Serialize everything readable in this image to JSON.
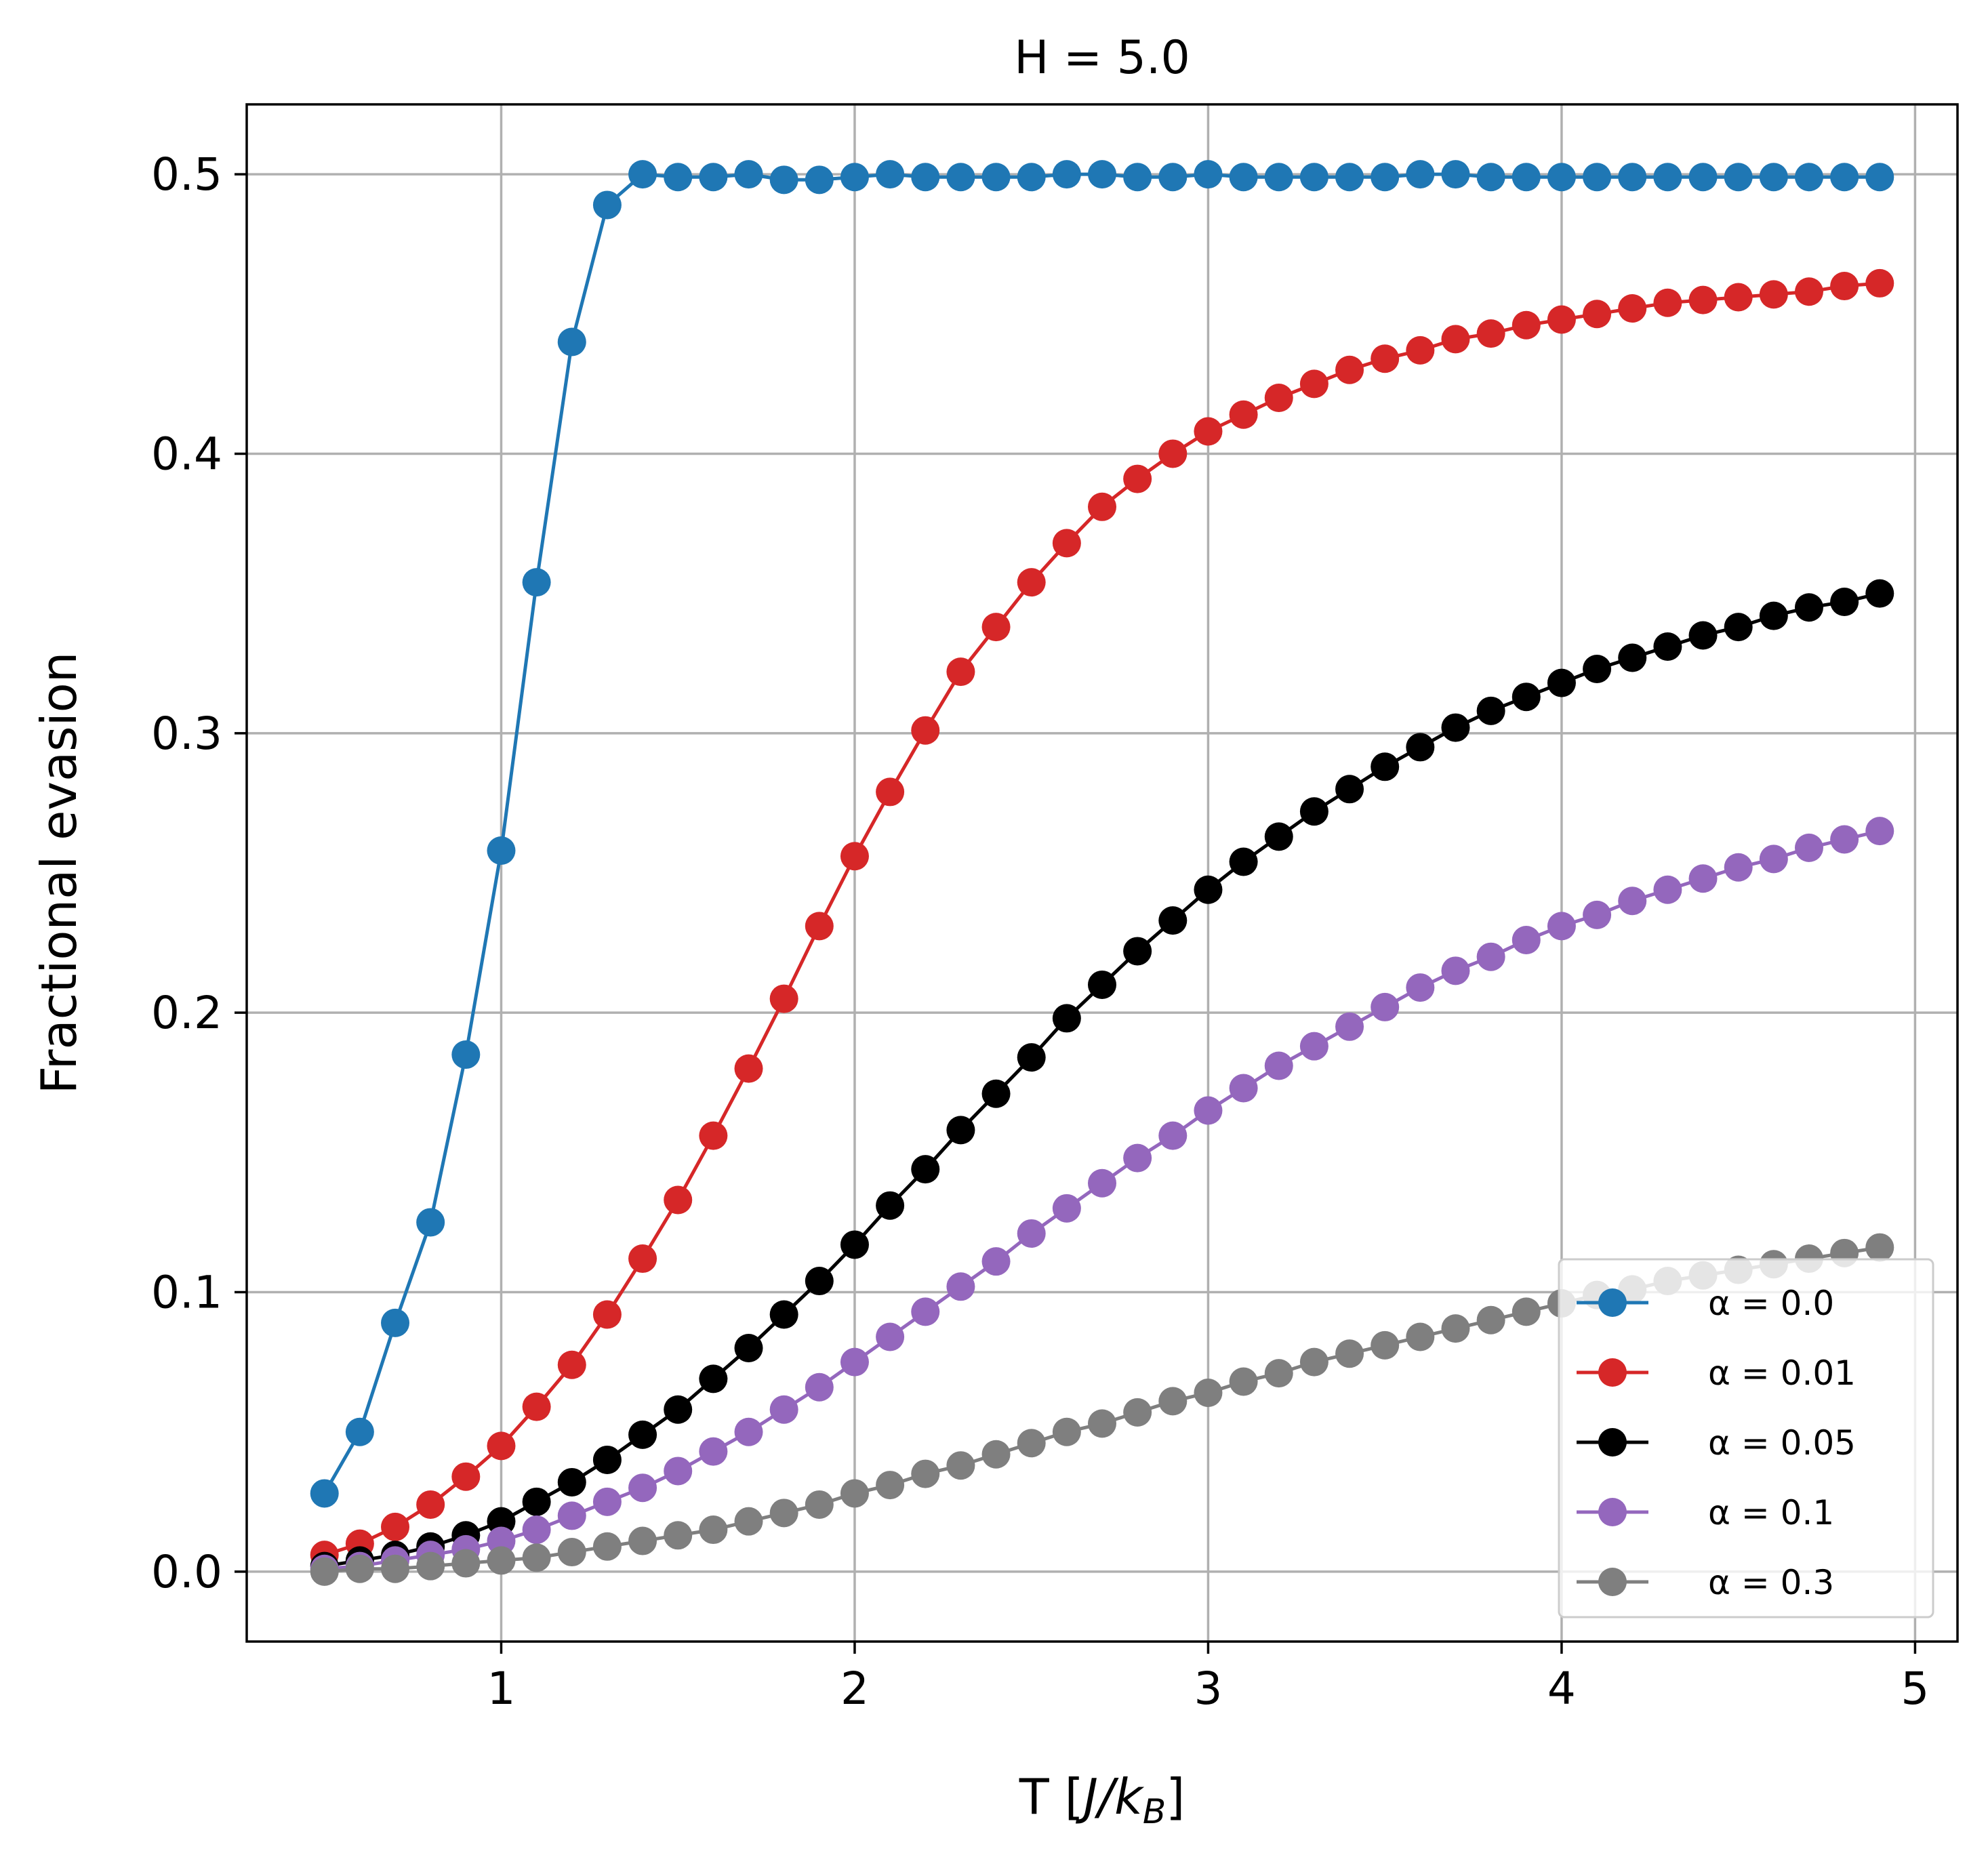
{
  "chart_data": {
    "type": "line",
    "title": "H = 5.0",
    "xlabel": "T [J/k_B]",
    "xlabel_parts": {
      "prefix": "T [",
      "main": "J/k",
      "sub": "B",
      "suffix": "]"
    },
    "ylabel": "Fractional evasion",
    "xlim": [
      0.28,
      5.12
    ],
    "ylim": [
      -0.025,
      0.525
    ],
    "xticks": [
      1,
      2,
      3,
      4,
      5
    ],
    "xtick_labels": [
      "1",
      "2",
      "3",
      "4",
      "5"
    ],
    "yticks": [
      0.0,
      0.1,
      0.2,
      0.3,
      0.4,
      0.5
    ],
    "ytick_labels": [
      "0.0",
      "0.1",
      "0.2",
      "0.3",
      "0.4",
      "0.5"
    ],
    "grid": true,
    "legend_position": "lower-right",
    "x": [
      0.5,
      0.6,
      0.7,
      0.8,
      0.9,
      1.0,
      1.1,
      1.2,
      1.3,
      1.4,
      1.5,
      1.6,
      1.7,
      1.8,
      1.9,
      2.0,
      2.1,
      2.2,
      2.3,
      2.4,
      2.5,
      2.6,
      2.7,
      2.8,
      2.9,
      3.0,
      3.1,
      3.2,
      3.3,
      3.4,
      3.5,
      3.6,
      3.7,
      3.8,
      3.9,
      4.0,
      4.1,
      4.2,
      4.3,
      4.4,
      4.5,
      4.6,
      4.7,
      4.8,
      4.9
    ],
    "series": [
      {
        "name": "α = 0.0",
        "color": "#1f77b4",
        "values": [
          0.028,
          0.05,
          0.089,
          0.125,
          0.185,
          0.258,
          0.354,
          0.44,
          0.489,
          0.5,
          0.499,
          0.499,
          0.5,
          0.498,
          0.498,
          0.499,
          0.5,
          0.499,
          0.499,
          0.499,
          0.499,
          0.5,
          0.5,
          0.499,
          0.499,
          0.5,
          0.499,
          0.499,
          0.499,
          0.499,
          0.499,
          0.5,
          0.5,
          0.499,
          0.499,
          0.499,
          0.499,
          0.499,
          0.499,
          0.499,
          0.499,
          0.499,
          0.499,
          0.499,
          0.499
        ]
      },
      {
        "name": "α = 0.01",
        "color": "#d62728",
        "values": [
          0.006,
          0.01,
          0.016,
          0.024,
          0.034,
          0.045,
          0.059,
          0.074,
          0.092,
          0.112,
          0.133,
          0.156,
          0.18,
          0.205,
          0.231,
          0.256,
          0.279,
          0.301,
          0.322,
          0.338,
          0.354,
          0.368,
          0.381,
          0.391,
          0.4,
          0.408,
          0.414,
          0.42,
          0.425,
          0.43,
          0.434,
          0.437,
          0.441,
          0.443,
          0.446,
          0.448,
          0.45,
          0.452,
          0.454,
          0.455,
          0.456,
          0.457,
          0.458,
          0.46,
          0.461
        ]
      },
      {
        "name": "α = 0.05",
        "color": "#000000",
        "values": [
          0.002,
          0.004,
          0.006,
          0.009,
          0.013,
          0.018,
          0.025,
          0.032,
          0.04,
          0.049,
          0.058,
          0.069,
          0.08,
          0.092,
          0.104,
          0.117,
          0.131,
          0.144,
          0.158,
          0.171,
          0.184,
          0.198,
          0.21,
          0.222,
          0.233,
          0.244,
          0.254,
          0.263,
          0.272,
          0.28,
          0.288,
          0.295,
          0.302,
          0.308,
          0.313,
          0.318,
          0.323,
          0.327,
          0.331,
          0.335,
          0.338,
          0.342,
          0.345,
          0.347,
          0.35
        ]
      },
      {
        "name": "α = 0.1",
        "color": "#9467bd",
        "values": [
          0.001,
          0.002,
          0.004,
          0.006,
          0.008,
          0.011,
          0.015,
          0.02,
          0.025,
          0.03,
          0.036,
          0.043,
          0.05,
          0.058,
          0.066,
          0.075,
          0.084,
          0.093,
          0.102,
          0.111,
          0.121,
          0.13,
          0.139,
          0.148,
          0.156,
          0.165,
          0.173,
          0.181,
          0.188,
          0.195,
          0.202,
          0.209,
          0.215,
          0.22,
          0.226,
          0.231,
          0.235,
          0.24,
          0.244,
          0.248,
          0.252,
          0.255,
          0.259,
          0.262,
          0.265
        ]
      },
      {
        "name": "α = 0.3",
        "color": "#7f7f7f",
        "values": [
          0.0,
          0.001,
          0.001,
          0.002,
          0.003,
          0.004,
          0.005,
          0.007,
          0.009,
          0.011,
          0.013,
          0.015,
          0.018,
          0.021,
          0.024,
          0.028,
          0.031,
          0.035,
          0.038,
          0.042,
          0.046,
          0.05,
          0.053,
          0.057,
          0.061,
          0.064,
          0.068,
          0.071,
          0.075,
          0.078,
          0.081,
          0.084,
          0.087,
          0.09,
          0.093,
          0.096,
          0.099,
          0.101,
          0.104,
          0.106,
          0.108,
          0.11,
          0.112,
          0.114,
          0.116
        ]
      }
    ]
  }
}
